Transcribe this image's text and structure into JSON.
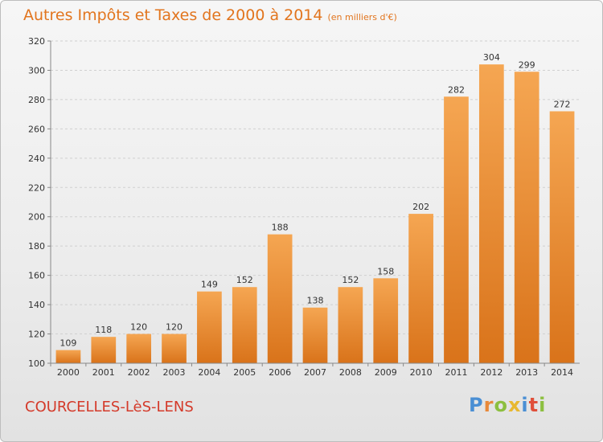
{
  "title": "Autres Impôts et Taxes de 2000 à 2014",
  "unit": "(en milliers d'€)",
  "city": "COURCELLES-LèS-LENS",
  "logo": {
    "letters": [
      {
        "char": "P",
        "color": "#4a8fd4"
      },
      {
        "char": "r",
        "color": "#e8893a"
      },
      {
        "char": "o",
        "color": "#8cbf3f"
      },
      {
        "char": "x",
        "color": "#e8b830"
      },
      {
        "char": "i",
        "color": "#4a8fd4"
      },
      {
        "char": "t",
        "color": "#e04f3a"
      },
      {
        "char": "i",
        "color": "#8cbf3f"
      }
    ]
  },
  "colors": {
    "bar_top": "#f5a652",
    "bar_bottom": "#d9731a",
    "grid": "#d0d0d0",
    "axis": "#888888"
  },
  "chart_data": {
    "type": "bar",
    "categories": [
      "2000",
      "2001",
      "2002",
      "2003",
      "2004",
      "2005",
      "2006",
      "2007",
      "2008",
      "2009",
      "2010",
      "2011",
      "2012",
      "2013",
      "2014"
    ],
    "values": [
      109,
      118,
      120,
      120,
      149,
      152,
      188,
      138,
      152,
      158,
      202,
      282,
      304,
      299,
      272
    ],
    "ylim": [
      100,
      320
    ],
    "yticks": [
      100,
      120,
      140,
      160,
      180,
      200,
      220,
      240,
      260,
      280,
      300,
      320
    ],
    "grid": true,
    "data_labels": true
  }
}
